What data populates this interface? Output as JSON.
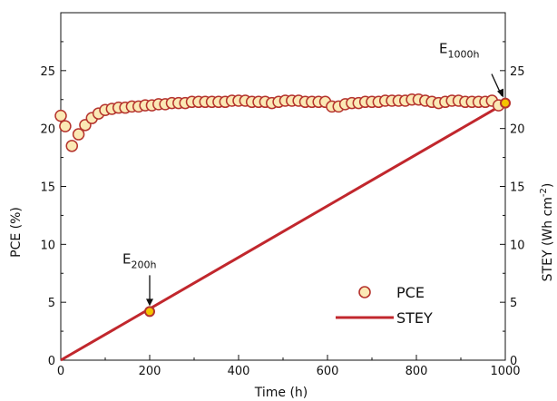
{
  "chart_data": {
    "type": "line",
    "xlabel": "Time (h)",
    "ylabel_left": "PCE (%)",
    "ylabel_right": "STEY (Wh cm",
    "ylabel_right_sup": "-2",
    "ylabel_right_close": ")",
    "xlim": [
      0,
      1000
    ],
    "ylim": [
      0,
      30
    ],
    "x_ticks": [
      0,
      200,
      400,
      600,
      800,
      1000
    ],
    "y_ticks": [
      0,
      5,
      10,
      15,
      20,
      25
    ],
    "grid": false,
    "legend_position": "center-right",
    "colors": {
      "pce_fill": "#fbe9b5",
      "pce_edge": "#b5332d",
      "stey_line": "#c1272d",
      "marker_fill": "#f4c400"
    },
    "series": [
      {
        "name": "PCE",
        "kind": "scatter",
        "x": [
          0,
          10,
          25,
          40,
          55,
          70,
          85,
          100,
          115,
          130,
          145,
          160,
          175,
          190,
          205,
          220,
          235,
          250,
          265,
          280,
          295,
          310,
          325,
          340,
          355,
          370,
          385,
          400,
          415,
          430,
          445,
          460,
          475,
          490,
          505,
          520,
          535,
          550,
          565,
          580,
          595,
          610,
          625,
          640,
          655,
          670,
          685,
          700,
          715,
          730,
          745,
          760,
          775,
          790,
          805,
          820,
          835,
          850,
          865,
          880,
          895,
          910,
          925,
          940,
          955,
          970,
          985
        ],
        "y": [
          21.1,
          20.2,
          18.5,
          19.5,
          20.3,
          20.9,
          21.3,
          21.6,
          21.7,
          21.8,
          21.8,
          21.9,
          21.9,
          22.0,
          22.0,
          22.1,
          22.1,
          22.2,
          22.2,
          22.2,
          22.3,
          22.3,
          22.3,
          22.3,
          22.3,
          22.3,
          22.4,
          22.4,
          22.4,
          22.3,
          22.3,
          22.3,
          22.2,
          22.3,
          22.4,
          22.4,
          22.4,
          22.3,
          22.3,
          22.3,
          22.3,
          21.9,
          21.9,
          22.1,
          22.2,
          22.2,
          22.3,
          22.3,
          22.3,
          22.4,
          22.4,
          22.4,
          22.4,
          22.5,
          22.5,
          22.4,
          22.3,
          22.2,
          22.3,
          22.4,
          22.4,
          22.3,
          22.3,
          22.3,
          22.3,
          22.4,
          22.0
        ]
      },
      {
        "name": "STEY",
        "kind": "line",
        "x": [
          0,
          1000
        ],
        "y": [
          0,
          22.2
        ]
      }
    ],
    "annotations": [
      {
        "base": "E",
        "sub": "200h",
        "x": 200,
        "y": 4.2
      },
      {
        "base": "E",
        "sub": "1000h",
        "x": 1000,
        "y": 22.2
      }
    ]
  }
}
